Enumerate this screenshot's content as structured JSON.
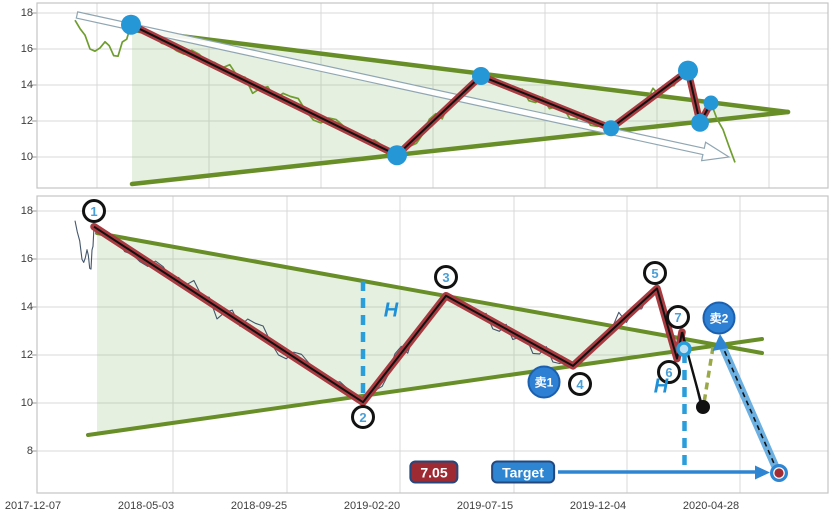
{
  "chart_data": {
    "type": "line",
    "title": "",
    "pattern": "descending-triangle-with-zigzag-wave-count",
    "x_tick_labels": [
      "2017-12-07",
      "2018-05-03",
      "2018-09-25",
      "2019-02-20",
      "2019-07-15",
      "2019-12-04",
      "2020-04-28"
    ],
    "panels": [
      {
        "name": "overview-panel",
        "yticks": [
          18,
          16,
          14,
          12,
          10
        ],
        "ylim": [
          8.3,
          18.6
        ],
        "grid": true,
        "price_line_color": "#6f9e2f"
      },
      {
        "name": "analysis-panel",
        "yticks": [
          18,
          16,
          14,
          12,
          10,
          8
        ],
        "ylim": [
          6.1,
          18.7
        ],
        "grid": true,
        "price_line_color": "#44566b"
      }
    ],
    "price_swings": [
      {
        "point": "start",
        "price": 17.6
      },
      {
        "point": "dip",
        "price": 15.6
      },
      {
        "point": "1",
        "price": 17.35
      },
      {
        "point": "2",
        "price": 10.1
      },
      {
        "point": "3",
        "price": 14.5
      },
      {
        "point": "4",
        "price": 11.6
      },
      {
        "point": "5",
        "price": 14.8
      },
      {
        "point": "6",
        "price": 11.9
      },
      {
        "point": "7",
        "price": 13.0
      },
      {
        "point": "end",
        "price": 9.7
      }
    ],
    "pivots": [
      {
        "label": "1",
        "price": 17.35
      },
      {
        "label": "2",
        "price": 10.1
      },
      {
        "label": "3",
        "price": 14.5
      },
      {
        "label": "4",
        "price": 11.6
      },
      {
        "label": "5",
        "price": 14.8
      },
      {
        "label": "6",
        "price": 11.9
      },
      {
        "label": "7",
        "price": 13.0
      }
    ],
    "measurements": {
      "height_label": "H",
      "target_price": 7.05,
      "price_after_break": 9.9
    },
    "signals": [
      {
        "label": "卖1",
        "near_pivot": "4"
      },
      {
        "label": "卖2",
        "near_pivot": "7"
      }
    ]
  },
  "ui": {
    "h": "H",
    "sell1": "卖1",
    "sell2": "卖2",
    "price_label": "7.05",
    "target_label": "Target",
    "pivot_numbers": [
      "1",
      "2",
      "3",
      "4",
      "5",
      "6",
      "7"
    ]
  },
  "colors": {
    "grid": "#d9d9d9",
    "panel_border": "#c4c4c4",
    "axis_text": "#3d3d3d",
    "price_top": "#6f9e2f",
    "price_bottom": "#44566b",
    "trendline": "#688e28",
    "wedge_fill": "rgba(140,185,120,0.22)",
    "zigzag_outer": "#a93a40",
    "zigzag_inner": "#111111",
    "pivot_dot": "#2596d6",
    "dashed_blue": "#2a9edb",
    "sell_fill": "#2d80d3",
    "sell_border": "#1b5fae",
    "number_blue": "#4a9fd6",
    "box_red": "#9e2b33",
    "box_blue": "#2e86d3",
    "box_border": "#24477e",
    "band_blue": "#6cb0e2",
    "olive_dash": "#9aa944",
    "white_arrow_stroke": "#8fa6b2",
    "black": "#111111",
    "target_center": "#a22d35",
    "ring_fill": "#bfe0f2"
  }
}
